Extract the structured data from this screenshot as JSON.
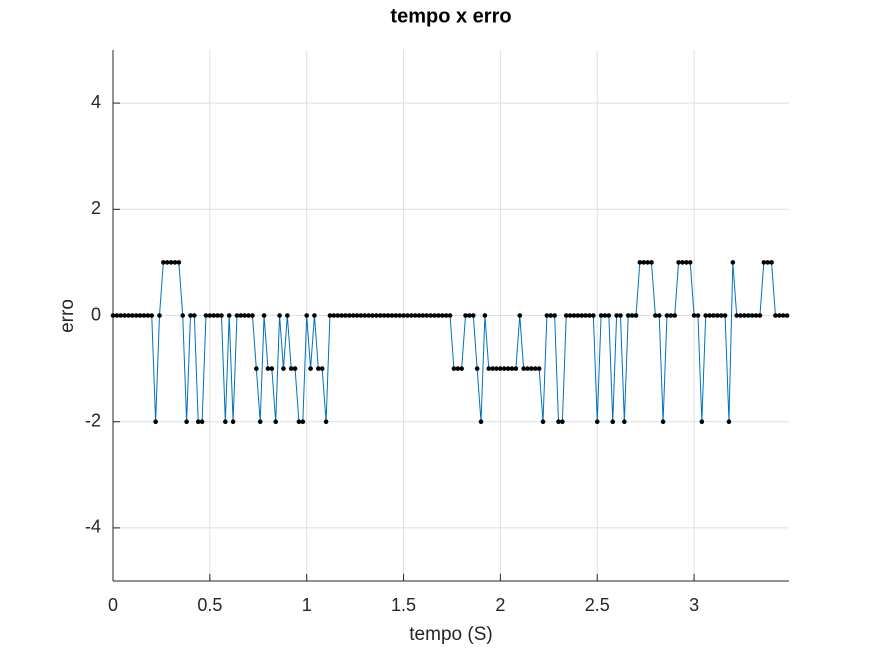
{
  "chart_data": {
    "type": "line",
    "title": "tempo x erro",
    "x_label": "tempo (S)",
    "y_label": "erro",
    "x": [
      0,
      0.02,
      0.04,
      0.06,
      0.08,
      0.1,
      0.12,
      0.14,
      0.16,
      0.18,
      0.2,
      0.22,
      0.24,
      0.26,
      0.28,
      0.3,
      0.32,
      0.34,
      0.36,
      0.38,
      0.4,
      0.42,
      0.44,
      0.46,
      0.48,
      0.5,
      0.52,
      0.54,
      0.56,
      0.58,
      0.6,
      0.62,
      0.64,
      0.66,
      0.68,
      0.7,
      0.72,
      0.74,
      0.76,
      0.78,
      0.8,
      0.82,
      0.84,
      0.86,
      0.88,
      0.9,
      0.92,
      0.94,
      0.96,
      0.98,
      1,
      1.02,
      1.04,
      1.06,
      1.08,
      1.1,
      1.12,
      1.14,
      1.16,
      1.18,
      1.2,
      1.22,
      1.24,
      1.26,
      1.28,
      1.3,
      1.32,
      1.34,
      1.36,
      1.38,
      1.4,
      1.42,
      1.44,
      1.46,
      1.48,
      1.5,
      1.52,
      1.54,
      1.56,
      1.58,
      1.6,
      1.62,
      1.64,
      1.66,
      1.68,
      1.7,
      1.72,
      1.74,
      1.76,
      1.78,
      1.8,
      1.82,
      1.84,
      1.86,
      1.88,
      1.9,
      1.92,
      1.94,
      1.96,
      1.98,
      2,
      2.02,
      2.04,
      2.06,
      2.08,
      2.1,
      2.12,
      2.14,
      2.16,
      2.18,
      2.2,
      2.22,
      2.24,
      2.26,
      2.28,
      2.3,
      2.32,
      2.34,
      2.36,
      2.38,
      2.4,
      2.42,
      2.44,
      2.46,
      2.48,
      2.5,
      2.52,
      2.54,
      2.56,
      2.58,
      2.6,
      2.62,
      2.64,
      2.66,
      2.68,
      2.7,
      2.72,
      2.74,
      2.76,
      2.78,
      2.8,
      2.82,
      2.84,
      2.86,
      2.88,
      2.9,
      2.92,
      2.94,
      2.96,
      2.98,
      3,
      3.02,
      3.04,
      3.06,
      3.08,
      3.1,
      3.12,
      3.14,
      3.16,
      3.18,
      3.2,
      3.22,
      3.24,
      3.26,
      3.28,
      3.3,
      3.32,
      3.34,
      3.36,
      3.38,
      3.4,
      3.42,
      3.44,
      3.46,
      3.48
    ],
    "values": [
      0,
      0,
      0,
      0,
      0,
      0,
      0,
      0,
      0,
      0,
      0,
      -2,
      0,
      1,
      1,
      1,
      1,
      1,
      0,
      -2,
      0,
      0,
      -2,
      -2,
      0,
      0,
      0,
      0,
      0,
      -2,
      0,
      -2,
      0,
      0,
      0,
      0,
      0,
      -1,
      -2,
      0,
      -1,
      -1,
      -2,
      0,
      -1,
      0,
      -1,
      -1,
      -2,
      -2,
      0,
      -1,
      0,
      -1,
      -1,
      -2,
      0,
      0,
      0,
      0,
      0,
      0,
      0,
      0,
      0,
      0,
      0,
      0,
      0,
      0,
      0,
      0,
      0,
      0,
      0,
      0,
      0,
      0,
      0,
      0,
      0,
      0,
      0,
      0,
      0,
      0,
      0,
      0,
      -1,
      -1,
      -1,
      0,
      0,
      0,
      -1,
      -2,
      0,
      -1,
      -1,
      -1,
      -1,
      -1,
      -1,
      -1,
      -1,
      0,
      -1,
      -1,
      -1,
      -1,
      -1,
      -2,
      0,
      0,
      0,
      -2,
      -2,
      0,
      0,
      0,
      0,
      0,
      0,
      0,
      0,
      -2,
      0,
      0,
      0,
      -2,
      0,
      0,
      -2,
      0,
      0,
      0,
      1,
      1,
      1,
      1,
      0,
      0,
      -2,
      0,
      0,
      0,
      1,
      1,
      1,
      1,
      0,
      0,
      -2,
      0,
      0,
      0,
      0,
      0,
      0,
      -2,
      1,
      0,
      0,
      0,
      0,
      0,
      0,
      0,
      1,
      1,
      1,
      0,
      0,
      0,
      0
    ],
    "color": "#0072bd",
    "marker_color": "#000000",
    "xlim": [
      0,
      3.49
    ],
    "ylim": [
      -5,
      5
    ],
    "xticks": [
      0,
      0.5,
      1,
      1.5,
      2,
      2.5,
      3
    ],
    "yticks": [
      -4,
      -2,
      0,
      2,
      4
    ],
    "grid": true
  }
}
